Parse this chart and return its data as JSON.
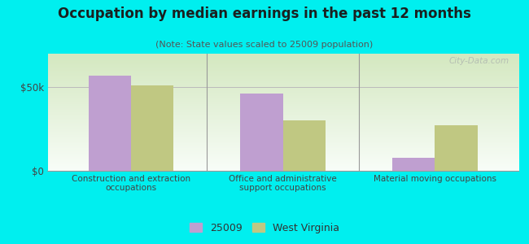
{
  "title": "Occupation by median earnings in the past 12 months",
  "subtitle": "(Note: State values scaled to 25009 population)",
  "categories": [
    "Construction and extraction\noccupations",
    "Office and administrative\nsupport occupations",
    "Material moving occupations"
  ],
  "values_25009": [
    57000,
    46000,
    8000
  ],
  "values_wv": [
    51000,
    30000,
    27000
  ],
  "color_25009": "#bf9fd0",
  "color_wv": "#c0c882",
  "background_color": "#00efef",
  "plot_bg_top": "#f8fdf8",
  "plot_bg_bottom": "#d4e8c0",
  "ylim": [
    0,
    70000
  ],
  "yticks": [
    0,
    50000
  ],
  "ytick_labels": [
    "$0",
    "$50k"
  ],
  "legend_25009": "25009",
  "legend_wv": "West Virginia",
  "bar_width": 0.28,
  "watermark": "City-Data.com",
  "title_fontsize": 12,
  "subtitle_fontsize": 8
}
